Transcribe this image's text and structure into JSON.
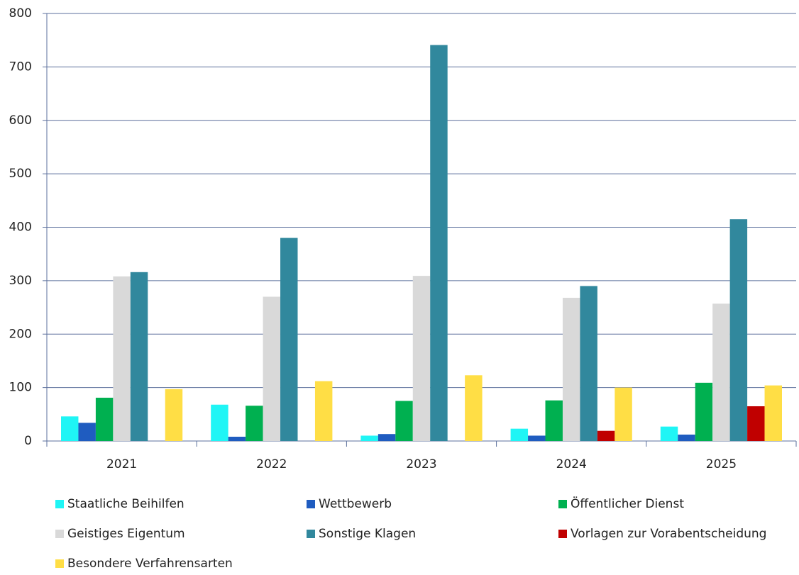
{
  "chart_data": {
    "type": "bar",
    "categories": [
      "2021",
      "2022",
      "2023",
      "2024",
      "2025"
    ],
    "series": [
      {
        "name": "Staatliche Beihilfen",
        "color": "#1ff5f5",
        "values": [
          46,
          68,
          10,
          23,
          27
        ]
      },
      {
        "name": "Wettbewerb",
        "color": "#1f5cc0",
        "values": [
          34,
          8,
          13,
          10,
          12
        ]
      },
      {
        "name": "Öffentlicher Dienst",
        "color": "#00b050",
        "values": [
          81,
          66,
          75,
          76,
          109
        ]
      },
      {
        "name": "Geistiges Eigentum",
        "color": "#d9d9d9",
        "values": [
          308,
          270,
          309,
          268,
          257
        ]
      },
      {
        "name": "Sonstige Klagen",
        "color": "#31889d",
        "values": [
          316,
          380,
          741,
          290,
          415
        ]
      },
      {
        "name": "Vorlagen zur Vorabentscheidung",
        "color": "#c00000",
        "values": [
          null,
          null,
          null,
          19,
          65
        ]
      },
      {
        "name": "Besondere Verfahrensarten",
        "color": "#ffde45",
        "values": [
          97,
          112,
          123,
          100,
          104
        ]
      }
    ],
    "ylim": [
      0,
      800
    ],
    "yticks": [
      0,
      100,
      200,
      300,
      400,
      500,
      600,
      700,
      800
    ],
    "grid": true,
    "legend": "bottom"
  }
}
